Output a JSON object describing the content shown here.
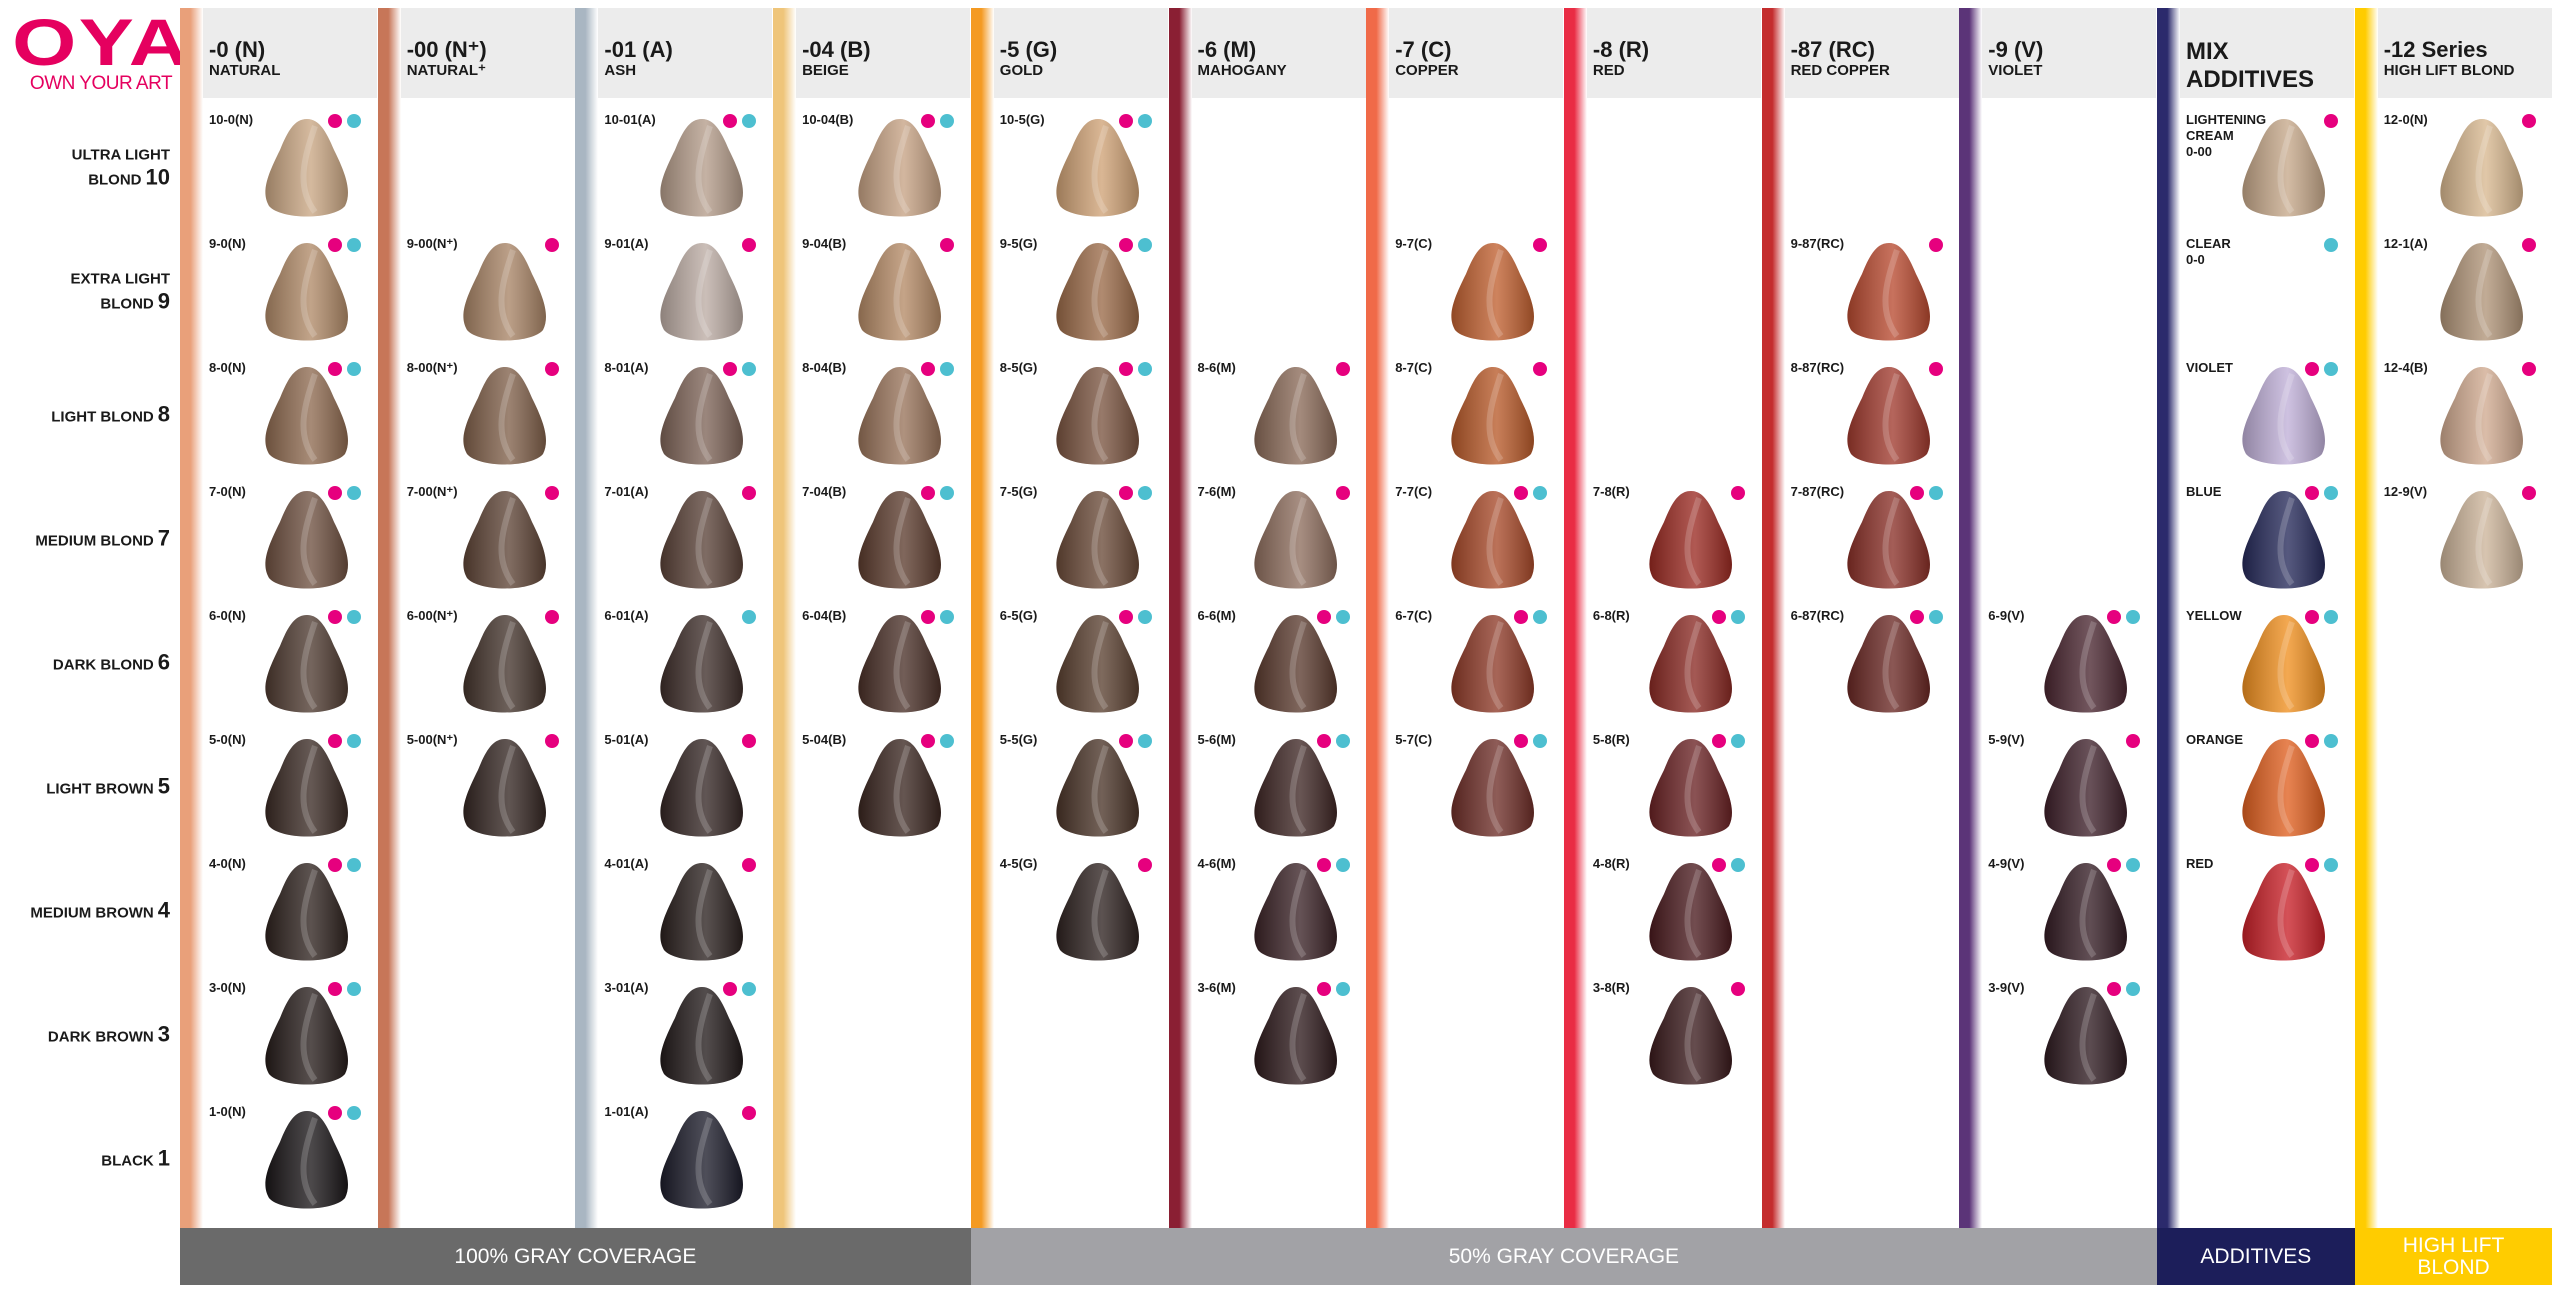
{
  "logo": {
    "mark": "OYA",
    "reg": "®",
    "tagline": "OWN YOUR ART",
    "color": "#e5005f"
  },
  "dot_colors": {
    "magenta": "#e6007e",
    "cyan": "#4dbfd0"
  },
  "rows": [
    {
      "label": "ULTRA LIGHT\nBLOND",
      "level": "10"
    },
    {
      "label": "EXTRA LIGHT\nBLOND",
      "level": "9"
    },
    {
      "label": "LIGHT BLOND",
      "level": "8"
    },
    {
      "label": "MEDIUM BLOND",
      "level": "7"
    },
    {
      "label": "DARK BLOND",
      "level": "6"
    },
    {
      "label": "LIGHT BROWN",
      "level": "5"
    },
    {
      "label": "MEDIUM BROWN",
      "level": "4"
    },
    {
      "label": "DARK BROWN",
      "level": "3"
    },
    {
      "label": "BLACK",
      "level": "1"
    }
  ],
  "columns": [
    {
      "code": "-0 (N)",
      "name": "NATURAL",
      "stripe": "#e9a07a",
      "cells": [
        {
          "code": "10-0(N)",
          "dots": [
            "magenta",
            "cyan"
          ],
          "color": "#c9a683"
        },
        {
          "code": "9-0(N)",
          "dots": [
            "magenta",
            "cyan"
          ],
          "color": "#b08a68"
        },
        {
          "code": "8-0(N)",
          "dots": [
            "magenta",
            "cyan"
          ],
          "color": "#8e6a50"
        },
        {
          "code": "7-0(N)",
          "dots": [
            "magenta",
            "cyan"
          ],
          "color": "#6e5040"
        },
        {
          "code": "6-0(N)",
          "dots": [
            "magenta",
            "cyan"
          ],
          "color": "#4e3a30"
        },
        {
          "code": "5-0(N)",
          "dots": [
            "magenta",
            "cyan"
          ],
          "color": "#3a2a24"
        },
        {
          "code": "4-0(N)",
          "dots": [
            "magenta",
            "cyan"
          ],
          "color": "#2e221e"
        },
        {
          "code": "3-0(N)",
          "dots": [
            "magenta",
            "cyan"
          ],
          "color": "#261c1a"
        },
        {
          "code": "1-0(N)",
          "dots": [
            "magenta",
            "cyan"
          ],
          "color": "#1a1618"
        }
      ]
    },
    {
      "code": "-00 (N⁺)",
      "name": "NATURAL⁺",
      "stripe": "#c77658",
      "cells": [
        null,
        {
          "code": "9-00(N⁺)",
          "dots": [
            "magenta"
          ],
          "color": "#a88466"
        },
        {
          "code": "8-00(N⁺)",
          "dots": [
            "magenta"
          ],
          "color": "#80604a"
        },
        {
          "code": "7-00(N⁺)",
          "dots": [
            "magenta"
          ],
          "color": "#5e4436"
        },
        {
          "code": "6-00(N⁺)",
          "dots": [
            "magenta"
          ],
          "color": "#44342c"
        },
        {
          "code": "5-00(N⁺)",
          "dots": [
            "magenta"
          ],
          "color": "#342622"
        },
        null,
        null,
        null
      ]
    },
    {
      "code": "-01 (A)",
      "name": "ASH",
      "stripe": "#a9b6c2",
      "cells": [
        {
          "code": "10-01(A)",
          "dots": [
            "magenta",
            "cyan"
          ],
          "color": "#b49c8a"
        },
        {
          "code": "9-01(A)",
          "dots": [
            "magenta"
          ],
          "color": "#bcaca4"
        },
        {
          "code": "8-01(A)",
          "dots": [
            "magenta",
            "cyan"
          ],
          "color": "#7e6458"
        },
        {
          "code": "7-01(A)",
          "dots": [
            "magenta"
          ],
          "color": "#5a4238"
        },
        {
          "code": "6-01(A)",
          "dots": [
            "cyan"
          ],
          "color": "#3e2e2a"
        },
        {
          "code": "5-01(A)",
          "dots": [
            "magenta"
          ],
          "color": "#342624"
        },
        {
          "code": "4-01(A)",
          "dots": [
            "magenta"
          ],
          "color": "#2a201e"
        },
        {
          "code": "3-01(A)",
          "dots": [
            "magenta",
            "cyan"
          ],
          "color": "#221a1a"
        },
        {
          "code": "1-01(A)",
          "dots": [
            "magenta"
          ],
          "color": "#1c1c2a"
        }
      ]
    },
    {
      "code": "-04 (B)",
      "name": "BEIGE",
      "stripe": "#efc57a",
      "cells": [
        {
          "code": "10-04(B)",
          "dots": [
            "magenta",
            "cyan"
          ],
          "color": "#c6a284"
        },
        {
          "code": "9-04(B)",
          "dots": [
            "magenta"
          ],
          "color": "#b48a66"
        },
        {
          "code": "8-04(B)",
          "dots": [
            "magenta",
            "cyan"
          ],
          "color": "#98735a"
        },
        {
          "code": "7-04(B)",
          "dots": [
            "magenta",
            "cyan"
          ],
          "color": "#5c3c2e"
        },
        {
          "code": "6-04(B)",
          "dots": [
            "magenta",
            "cyan"
          ],
          "color": "#4a3028"
        },
        {
          "code": "5-04(B)",
          "dots": [
            "magenta",
            "cyan"
          ],
          "color": "#3a2620"
        },
        null,
        null,
        null
      ]
    },
    {
      "code": "-5 (G)",
      "name": "GOLD",
      "stripe": "#f49a22",
      "cells": [
        {
          "code": "10-5(G)",
          "dots": [
            "magenta",
            "cyan"
          ],
          "color": "#cfa276"
        },
        {
          "code": "9-5(G)",
          "dots": [
            "magenta",
            "cyan"
          ],
          "color": "#9a6a48"
        },
        {
          "code": "8-5(G)",
          "dots": [
            "magenta",
            "cyan"
          ],
          "color": "#7a5440"
        },
        {
          "code": "7-5(G)",
          "dots": [
            "magenta",
            "cyan"
          ],
          "color": "#6a4a38"
        },
        {
          "code": "6-5(G)",
          "dots": [
            "magenta",
            "cyan"
          ],
          "color": "#5a4030"
        },
        {
          "code": "5-5(G)",
          "dots": [
            "magenta",
            "cyan"
          ],
          "color": "#4a3428"
        },
        {
          "code": "4-5(G)",
          "dots": [
            "magenta"
          ],
          "color": "#2e2220"
        },
        null,
        null
      ]
    },
    {
      "code": "-6 (M)",
      "name": "MAHOGANY",
      "stripe": "#8a1f33",
      "cells": [
        null,
        null,
        {
          "code": "8-6(M)",
          "dots": [
            "magenta"
          ],
          "color": "#8a6a58"
        },
        {
          "code": "7-6(M)",
          "dots": [
            "magenta"
          ],
          "color": "#8e6e5e"
        },
        {
          "code": "6-6(M)",
          "dots": [
            "magenta",
            "cyan"
          ],
          "color": "#5a3a2e"
        },
        {
          "code": "5-6(M)",
          "dots": [
            "magenta",
            "cyan"
          ],
          "color": "#3e2624"
        },
        {
          "code": "4-6(M)",
          "dots": [
            "magenta",
            "cyan"
          ],
          "color": "#3a2226"
        },
        {
          "code": "3-6(M)",
          "dots": [
            "magenta",
            "cyan"
          ],
          "color": "#2e1a1c"
        },
        null
      ]
    },
    {
      "code": "-7 (C)",
      "name": "COPPER",
      "stripe": "#f06a48",
      "cells": [
        null,
        {
          "code": "9-7(C)",
          "dots": [
            "magenta"
          ],
          "color": "#c06030"
        },
        {
          "code": "8-7(C)",
          "dots": [
            "magenta"
          ],
          "color": "#b85a2a"
        },
        {
          "code": "7-7(C)",
          "dots": [
            "magenta",
            "cyan"
          ],
          "color": "#a84a2a"
        },
        {
          "code": "6-7(C)",
          "dots": [
            "magenta",
            "cyan"
          ],
          "color": "#8e3a28"
        },
        {
          "code": "5-7(C)",
          "dots": [
            "magenta",
            "cyan"
          ],
          "color": "#6e2e28"
        },
        null,
        null,
        null
      ]
    },
    {
      "code": "-8 (R)",
      "name": "RED",
      "stripe": "#e92c44",
      "cells": [
        null,
        null,
        null,
        {
          "code": "7-8(R)",
          "dots": [
            "magenta"
          ],
          "color": "#9a2a22"
        },
        {
          "code": "6-8(R)",
          "dots": [
            "magenta",
            "cyan"
          ],
          "color": "#8a2a24"
        },
        {
          "code": "5-8(R)",
          "dots": [
            "magenta",
            "cyan"
          ],
          "color": "#6a2224"
        },
        {
          "code": "4-8(R)",
          "dots": [
            "magenta",
            "cyan"
          ],
          "color": "#4a1a1e"
        },
        {
          "code": "3-8(R)",
          "dots": [
            "magenta"
          ],
          "color": "#3a1a1c"
        },
        null
      ]
    },
    {
      "code": "-87 (RC)",
      "name": "RED COPPER",
      "stripe": "#c42d2e",
      "cells": [
        null,
        {
          "code": "9-87(RC)",
          "dots": [
            "magenta"
          ],
          "color": "#b84a30"
        },
        {
          "code": "8-87(RC)",
          "dots": [
            "magenta"
          ],
          "color": "#a03a2e"
        },
        {
          "code": "7-87(RC)",
          "dots": [
            "magenta",
            "cyan"
          ],
          "color": "#8a3028"
        },
        {
          "code": "6-87(RC)",
          "dots": [
            "magenta",
            "cyan"
          ],
          "color": "#6a2824"
        },
        null,
        null,
        null,
        null
      ]
    },
    {
      "code": "-9 (V)",
      "name": "VIOLET",
      "stripe": "#5b3478",
      "cells": [
        null,
        null,
        null,
        null,
        {
          "code": "6-9(V)",
          "dots": [
            "magenta",
            "cyan"
          ],
          "color": "#4a2630"
        },
        {
          "code": "5-9(V)",
          "dots": [
            "magenta"
          ],
          "color": "#3e202a"
        },
        {
          "code": "4-9(V)",
          "dots": [
            "magenta",
            "cyan"
          ],
          "color": "#341c24"
        },
        {
          "code": "3-9(V)",
          "dots": [
            "magenta",
            "cyan"
          ],
          "color": "#2e1a20"
        },
        null
      ]
    },
    {
      "code": "MIX",
      "name": "ADDITIVES",
      "big": true,
      "stripe": "#2b2a6c",
      "cells": [
        {
          "code": "LIGHTENING\nCREAM\n0-00",
          "dots": [
            "magenta"
          ],
          "color": "#c6a88a"
        },
        {
          "code": "CLEAR\n0-0",
          "dots": [
            "cyan"
          ],
          "color": null
        },
        {
          "code": "VIOLET",
          "dots": [
            "magenta",
            "cyan"
          ],
          "color": "#c0b0d8"
        },
        {
          "code": "BLUE",
          "dots": [
            "magenta",
            "cyan"
          ],
          "color": "#262a5a"
        },
        {
          "code": "YELLOW",
          "dots": [
            "magenta",
            "cyan"
          ],
          "color": "#f09020"
        },
        {
          "code": "ORANGE",
          "dots": [
            "magenta",
            "cyan"
          ],
          "color": "#e06020"
        },
        {
          "code": "RED",
          "dots": [
            "magenta",
            "cyan"
          ],
          "color": "#c82028"
        },
        null,
        null
      ]
    },
    {
      "code": "-12 Series",
      "name": "HIGH LIFT BLOND",
      "stripe": "#ffcc00",
      "cells": [
        {
          "code": "12-0(N)",
          "dots": [
            "magenta"
          ],
          "color": "#d8b890"
        },
        {
          "code": "12-1(A)",
          "dots": [
            "magenta"
          ],
          "color": "#b09478"
        },
        {
          "code": "12-4(B)",
          "dots": [
            "magenta"
          ],
          "color": "#d0aa90"
        },
        {
          "code": "12-9(V)",
          "dots": [
            "magenta"
          ],
          "color": "#ccb49a"
        },
        null,
        null,
        null,
        null,
        null
      ]
    }
  ],
  "footer": [
    {
      "label": "100% GRAY COVERAGE",
      "span": 4,
      "color": "#6a6a6a"
    },
    {
      "label": "50% GRAY COVERAGE",
      "span": 6,
      "color": "#a2a2a6"
    },
    {
      "label": "ADDITIVES",
      "span": 1,
      "color": "#1c1e5a"
    },
    {
      "label": "HIGH LIFT\nBLOND",
      "span": 1,
      "color": "#ffcc00"
    }
  ]
}
